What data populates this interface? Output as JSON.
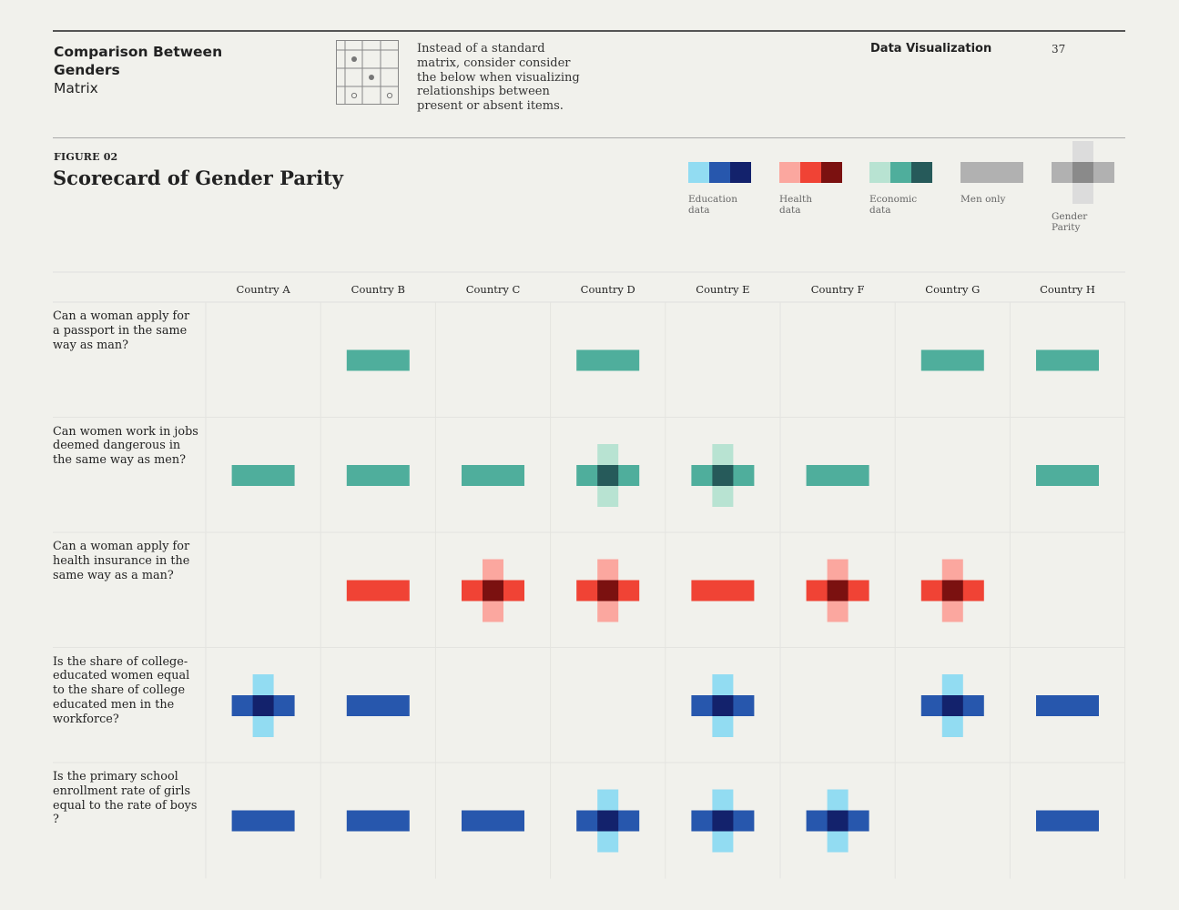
{
  "header": {
    "title_bold": "Comparison Between Genders",
    "title_sub": "Matrix",
    "description": "Instead of a standard matrix, consider consider the below when visualizing relationships between present or absent items.",
    "section": "Data Visualization",
    "page_number": "37"
  },
  "figure": {
    "label": "FIGURE 02",
    "title": "Scorecard of Gender Parity"
  },
  "legend": [
    {
      "key": "education",
      "label": "Education\ndata",
      "colors": [
        "#92dcf2",
        "#2757ad",
        "#13226c"
      ]
    },
    {
      "key": "health",
      "label": "Health\ndata",
      "colors": [
        "#fba79f",
        "#f04335",
        "#7b1110"
      ]
    },
    {
      "key": "economic",
      "label": "Economic\ndata",
      "colors": [
        "#b8e3d2",
        "#4fae9c",
        "#265a5a"
      ]
    },
    {
      "key": "men_only",
      "label": "Men only",
      "colors": [
        "#b1b1b1"
      ]
    },
    {
      "key": "gender_parity",
      "label": "Gender\nParity",
      "colors": [
        "#dcdcdc",
        "#b1b1b1",
        "#8a8a8a"
      ]
    }
  ],
  "chart_data": {
    "type": "table",
    "columns": [
      "Country A",
      "Country B",
      "Country C",
      "Country D",
      "Country E",
      "Country F",
      "Country G",
      "Country H"
    ],
    "rows": [
      {
        "question": "Can a woman apply for a passport in the same way as man?",
        "category": "economic",
        "cells": [
          "none",
          "men_only",
          "none",
          "men_only",
          "none",
          "none",
          "men_only",
          "men_only"
        ]
      },
      {
        "question": "Can women work in jobs deemed dangerous in the same way as men?",
        "category": "economic",
        "cells": [
          "men_only",
          "men_only",
          "men_only",
          "parity",
          "parity",
          "men_only",
          "none",
          "men_only"
        ]
      },
      {
        "question": "Can a woman apply for health insurance in the same way as a man?",
        "category": "health",
        "cells": [
          "none",
          "men_only",
          "parity",
          "parity",
          "men_only",
          "parity",
          "parity",
          "none"
        ]
      },
      {
        "question": "Is the share of college-educated women equal to the share of college educated men in the workforce?",
        "category": "education",
        "cells": [
          "parity",
          "men_only",
          "none",
          "none",
          "parity",
          "none",
          "parity",
          "men_only"
        ]
      },
      {
        "question": "Is the primary school enrollment rate of girls equal to the rate of boys ?",
        "category": "education",
        "cells": [
          "men_only",
          "men_only",
          "men_only",
          "parity",
          "parity",
          "parity",
          "none",
          "men_only"
        ]
      }
    ]
  }
}
